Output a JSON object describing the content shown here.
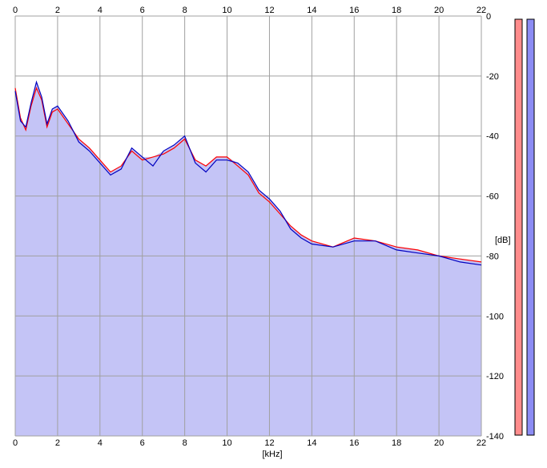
{
  "chart_data": {
    "type": "area",
    "xlabel": "[kHz]",
    "ylabel": "[dB]",
    "xlim": [
      0,
      22
    ],
    "ylim": [
      -140,
      0
    ],
    "x_ticks": [
      0,
      2,
      4,
      6,
      8,
      10,
      12,
      14,
      16,
      18,
      20,
      22
    ],
    "y_ticks": [
      0,
      -20,
      -40,
      -60,
      -80,
      -100,
      -120,
      -140
    ],
    "grid": true,
    "colors": {
      "fill": "#c4c4f6",
      "left": "#ff0000",
      "right": "#0000c0",
      "grid": "#a0a0a0",
      "meter_left": "#ff8c8c",
      "meter_right": "#8c8cf4"
    },
    "series": [
      {
        "color": "#ff0000",
        "x": [
          0,
          0.25,
          0.5,
          0.75,
          1,
          1.25,
          1.5,
          1.75,
          2,
          2.5,
          3,
          3.5,
          4,
          4.5,
          5,
          5.5,
          6,
          6.5,
          7,
          7.5,
          8,
          8.5,
          9,
          9.5,
          10,
          10.5,
          11,
          11.5,
          12,
          12.5,
          13,
          13.5,
          14,
          15,
          16,
          17,
          18,
          19,
          20,
          21,
          22
        ],
        "values": [
          -24,
          -34,
          -38,
          -30,
          -24,
          -28,
          -37,
          -32,
          -31,
          -36,
          -41,
          -44,
          -48,
          -52,
          -50,
          -45,
          -48,
          -47,
          -46,
          -44,
          -41,
          -48,
          -50,
          -47,
          -47,
          -50,
          -53,
          -59,
          -62,
          -66,
          -70,
          -73,
          -75,
          -77,
          -74,
          -75,
          -77,
          -78,
          -80,
          -81,
          -82
        ]
      },
      {
        "color": "#0000c0",
        "x": [
          0,
          0.25,
          0.5,
          0.75,
          1,
          1.25,
          1.5,
          1.75,
          2,
          2.5,
          3,
          3.5,
          4,
          4.5,
          5,
          5.5,
          6,
          6.5,
          7,
          7.5,
          8,
          8.5,
          9,
          9.5,
          10,
          10.5,
          11,
          11.5,
          12,
          12.5,
          13,
          13.5,
          14,
          15,
          16,
          17,
          18,
          19,
          20,
          21,
          22
        ],
        "values": [
          -25,
          -35,
          -37,
          -29,
          -22,
          -27,
          -36,
          -31,
          -30,
          -35,
          -42,
          -45,
          -49,
          -53,
          -51,
          -44,
          -47,
          -50,
          -45,
          -43,
          -40,
          -49,
          -52,
          -48,
          -48,
          -49,
          -52,
          -58,
          -61,
          -65,
          -71,
          -74,
          -76,
          -77,
          -75,
          -75,
          -78,
          -79,
          -80,
          -82,
          -83
        ]
      }
    ]
  }
}
